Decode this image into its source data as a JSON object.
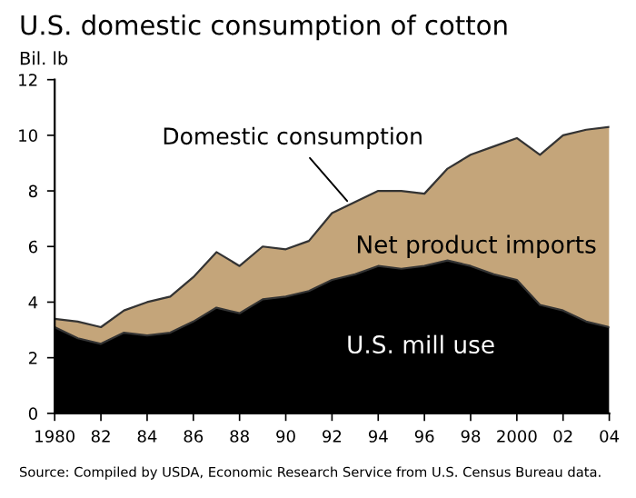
{
  "chart_data": {
    "type": "area",
    "stacked": true,
    "title": "U.S. domestic consumption of cotton",
    "ylabel": "Bil. lb",
    "x": [
      1980,
      1981,
      1982,
      1983,
      1984,
      1985,
      1986,
      1987,
      1988,
      1989,
      1990,
      1991,
      1992,
      1993,
      1994,
      1995,
      1996,
      1997,
      1998,
      1999,
      2000,
      2001,
      2002,
      2003,
      2004
    ],
    "series": [
      {
        "name": "U.S. mill use",
        "color": "#000000",
        "values": [
          3.1,
          2.7,
          2.5,
          2.9,
          2.8,
          2.9,
          3.3,
          3.8,
          3.6,
          4.1,
          4.2,
          4.4,
          4.8,
          5.0,
          5.3,
          5.2,
          5.3,
          5.5,
          5.3,
          5.0,
          4.8,
          3.9,
          3.7,
          3.3,
          3.1
        ]
      },
      {
        "name": "Net product imports",
        "color": "#c4a57a",
        "values": [
          0.3,
          0.6,
          0.6,
          0.8,
          1.2,
          1.3,
          1.6,
          2.0,
          1.7,
          1.9,
          1.7,
          1.8,
          2.4,
          2.6,
          2.7,
          2.8,
          2.6,
          3.3,
          4.0,
          4.6,
          5.1,
          5.4,
          6.3,
          6.9,
          7.2
        ]
      }
    ],
    "xlim": [
      1980,
      2004
    ],
    "xticks": [
      1980,
      {
        "value": 1982,
        "label": "82"
      },
      {
        "value": 1984,
        "label": "84"
      },
      {
        "value": 1986,
        "label": "86"
      },
      {
        "value": 1988,
        "label": "88"
      },
      {
        "value": 1990,
        "label": "90"
      },
      {
        "value": 1992,
        "label": "92"
      },
      {
        "value": 1994,
        "label": "94"
      },
      {
        "value": 1996,
        "label": "96"
      },
      {
        "value": 1998,
        "label": "98"
      },
      2000,
      {
        "value": 2002,
        "label": "02"
      },
      {
        "value": 2004,
        "label": "04"
      }
    ],
    "ylim": [
      0,
      12
    ],
    "yticks": [
      0,
      2,
      4,
      6,
      8,
      10,
      12
    ],
    "annotations": [
      {
        "text": "Domestic consumption",
        "x": 1992.8,
        "y": 7.5
      },
      "Source: Compiled by USDA, Economic Research Service from U.S. Census Bureau data."
    ],
    "grid": false,
    "legend": false
  }
}
